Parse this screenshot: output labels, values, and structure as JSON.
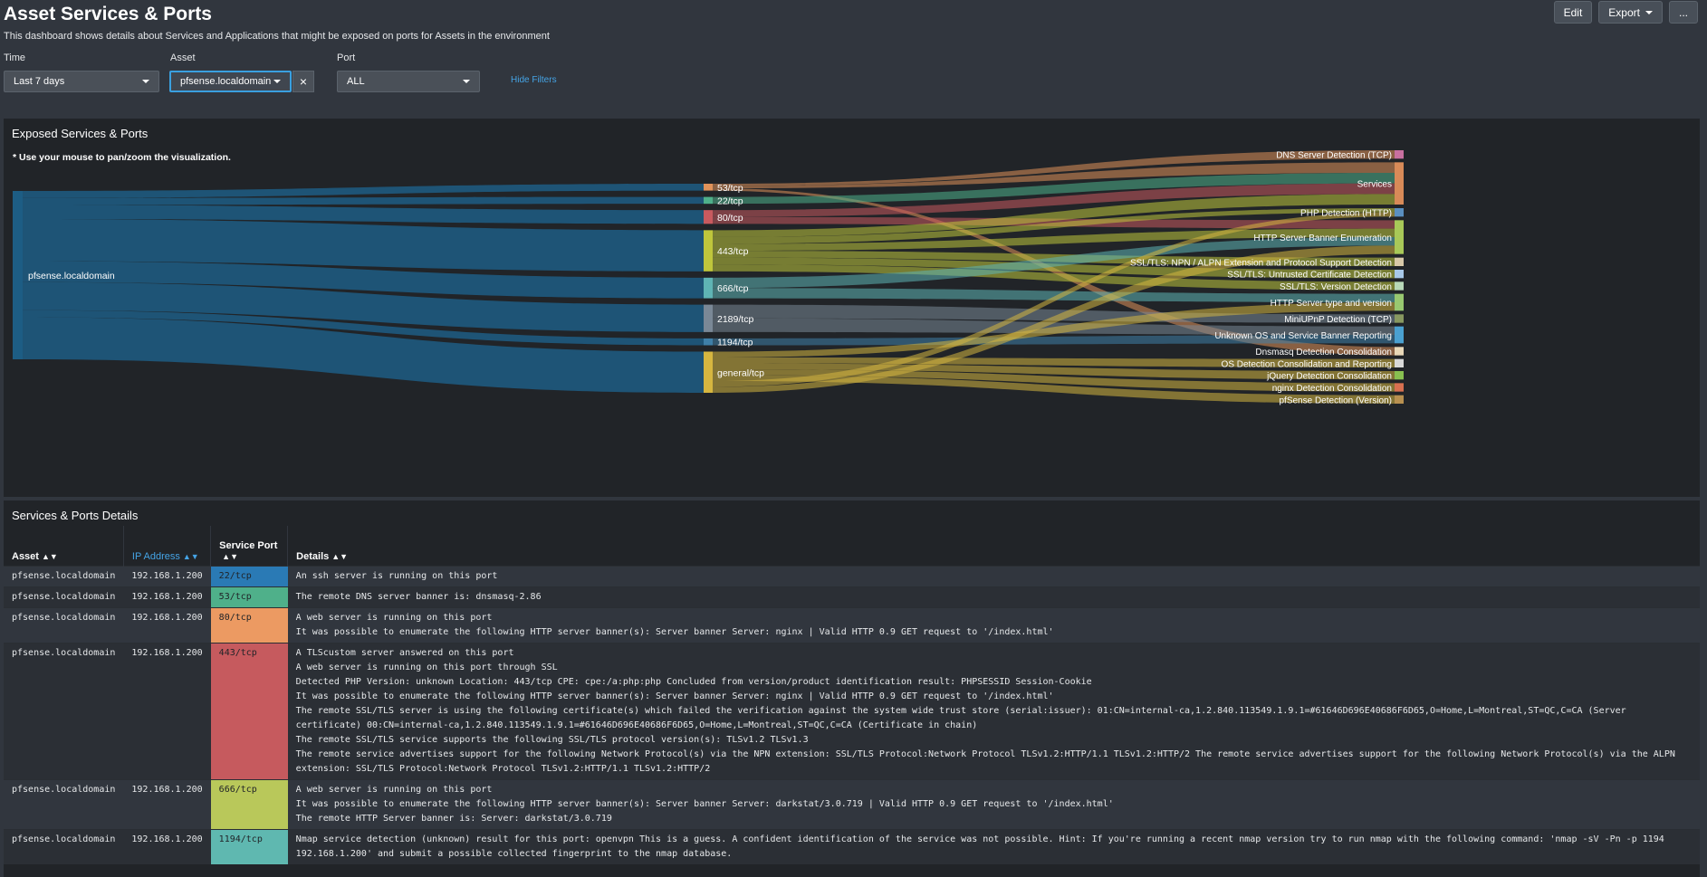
{
  "header": {
    "title": "Asset Services & Ports",
    "description": "This dashboard shows details about Services and Applications that might be exposed on ports for Assets in the environment",
    "edit_label": "Edit",
    "export_label": "Export",
    "more_label": "..."
  },
  "filters": {
    "time_label": "Time",
    "time_value": "Last 7 days",
    "asset_label": "Asset",
    "asset_value": "pfsense.localdomain",
    "clear_label": "×",
    "port_label": "Port",
    "port_value": "ALL",
    "hide_filters": "Hide Filters"
  },
  "sankey_panel": {
    "title": "Exposed Services & Ports",
    "note": "* Use your mouse to pan/zoom the visualization.",
    "source": "pfsense.localdomain",
    "ports": [
      {
        "label": "53/tcp",
        "color": "#e0925a",
        "weight": 1
      },
      {
        "label": "22/tcp",
        "color": "#4fb08a",
        "weight": 1
      },
      {
        "label": "80/tcp",
        "color": "#c85a5f",
        "weight": 2
      },
      {
        "label": "443/tcp",
        "color": "#bfc63c",
        "weight": 6
      },
      {
        "label": "666/tcp",
        "color": "#5fb4b4",
        "weight": 3
      },
      {
        "label": "2189/tcp",
        "color": "#7a8896",
        "weight": 4
      },
      {
        "label": "1194/tcp",
        "color": "#3f7fa8",
        "weight": 1
      },
      {
        "label": "general/tcp",
        "color": "#d6b640",
        "weight": 6
      }
    ],
    "services": [
      {
        "label": "DNS Server Detection (TCP)",
        "color": "#c870a0",
        "weight": 1
      },
      {
        "label": "Services",
        "color": "#d88a58",
        "weight": 5
      },
      {
        "label": "PHP Detection (HTTP)",
        "color": "#5a8fc0",
        "weight": 1
      },
      {
        "label": "HTTP Server Banner Enumeration",
        "color": "#a8c858",
        "weight": 4
      },
      {
        "label": "SSL/TLS: NPN / ALPN Extension and Protocol Support Detection",
        "color": "#d8c8a8",
        "weight": 1
      },
      {
        "label": "SSL/TLS: Untrusted Certificate Detection",
        "color": "#a8c8e8",
        "weight": 1
      },
      {
        "label": "SSL/TLS: Version Detection",
        "color": "#b8d8b8",
        "weight": 1
      },
      {
        "label": "HTTP Server type and version",
        "color": "#98c870",
        "weight": 2
      },
      {
        "label": "MiniUPnP Detection (TCP)",
        "color": "#889860",
        "weight": 1
      },
      {
        "label": "Unknown OS and Service Banner Reporting",
        "color": "#4aa0d0",
        "weight": 2
      },
      {
        "label": "Dnsmasq Detection Consolidation",
        "color": "#e8d8b8",
        "weight": 1
      },
      {
        "label": "OS Detection Consolidation and Reporting",
        "color": "#d8d8d8",
        "weight": 1
      },
      {
        "label": "jQuery Detection Consolidation",
        "color": "#88c050",
        "weight": 1
      },
      {
        "label": "nginx Detection Consolidation",
        "color": "#d87050",
        "weight": 1
      },
      {
        "label": "pfSense Detection (Version)",
        "color": "#b89050",
        "weight": 1
      }
    ],
    "links": [
      [
        0,
        0
      ],
      [
        0,
        1
      ],
      [
        0,
        10
      ],
      [
        1,
        1
      ],
      [
        2,
        1
      ],
      [
        2,
        3
      ],
      [
        3,
        1
      ],
      [
        3,
        2
      ],
      [
        3,
        3
      ],
      [
        3,
        4
      ],
      [
        3,
        5
      ],
      [
        3,
        6
      ],
      [
        4,
        3
      ],
      [
        4,
        7
      ],
      [
        5,
        8
      ],
      [
        5,
        9
      ],
      [
        6,
        9
      ],
      [
        7,
        7
      ],
      [
        7,
        11
      ],
      [
        7,
        12
      ],
      [
        7,
        13
      ],
      [
        7,
        14
      ],
      [
        7,
        2
      ],
      [
        7,
        3
      ]
    ]
  },
  "details_panel": {
    "title": "Services & Ports Details",
    "columns": {
      "asset": "Asset",
      "ip": "IP Address",
      "port": "Service Port",
      "details": "Details"
    },
    "rows": [
      {
        "asset": "pfsense.localdomain",
        "ip": "192.168.1.200",
        "port": "22/tcp",
        "port_color": "#2a7ab5",
        "details": [
          "An ssh server is running on this port"
        ]
      },
      {
        "asset": "pfsense.localdomain",
        "ip": "192.168.1.200",
        "port": "53/tcp",
        "port_color": "#4fb08a",
        "details": [
          "The remote DNS server banner is: dnsmasq-2.86"
        ]
      },
      {
        "asset": "pfsense.localdomain",
        "ip": "192.168.1.200",
        "port": "80/tcp",
        "port_color": "#ec9a62",
        "details": [
          "A web server is running on this port",
          "It was possible to enumerate the following HTTP server banner(s): Server banner Server: nginx | Valid HTTP 0.9 GET request to '/index.html'"
        ]
      },
      {
        "asset": "pfsense.localdomain",
        "ip": "192.168.1.200",
        "port": "443/tcp",
        "port_color": "#c65a5e",
        "details": [
          "A TLScustom server answered on this port",
          "A web server is running on this port through SSL",
          "Detected PHP Version: unknown Location: 443/tcp CPE: cpe:/a:php:php Concluded from version/product identification result: PHPSESSID Session-Cookie",
          "It was possible to enumerate the following HTTP server banner(s): Server banner Server: nginx | Valid HTTP 0.9 GET request to '/index.html'",
          "The remote SSL/TLS server is using the following certificate(s) which failed the verification against the system wide trust store (serial:issuer): 01:CN=internal-ca,1.2.840.113549.1.9.1=#61646D696E40686F6D65,O=Home,L=Montreal,ST=QC,C=CA (Server certificate) 00:CN=internal-ca,1.2.840.113549.1.9.1=#61646D696E40686F6D65,O=Home,L=Montreal,ST=QC,C=CA (Certificate in chain)",
          "The remote SSL/TLS service supports the following SSL/TLS protocol version(s): TLSv1.2 TLSv1.3",
          "The remote service advertises support for the following Network Protocol(s) via the NPN extension: SSL/TLS Protocol:Network Protocol TLSv1.2:HTTP/1.1 TLSv1.2:HTTP/2 The remote service advertises support for the following Network Protocol(s) via the ALPN extension: SSL/TLS Protocol:Network Protocol TLSv1.2:HTTP/1.1 TLSv1.2:HTTP/2"
        ]
      },
      {
        "asset": "pfsense.localdomain",
        "ip": "192.168.1.200",
        "port": "666/tcp",
        "port_color": "#b9c85a",
        "details": [
          "A web server is running on this port",
          "It was possible to enumerate the following HTTP server banner(s): Server banner  Server: darkstat/3.0.719 | Valid HTTP 0.9 GET request to '/index.html'",
          "The remote HTTP Server banner is: Server: darkstat/3.0.719"
        ]
      },
      {
        "asset": "pfsense.localdomain",
        "ip": "192.168.1.200",
        "port": "1194/tcp",
        "port_color": "#5fb8b0",
        "details": [
          "Nmap service detection (unknown) result for this port: openvpn This is a guess. A confident identification of the service was not possible. Hint: If you're running a recent nmap version try to run nmap with the following command: 'nmap -sV -Pn -p 1194 192.168.1.200' and submit a possible collected fingerprint to the nmap database."
        ]
      }
    ]
  }
}
